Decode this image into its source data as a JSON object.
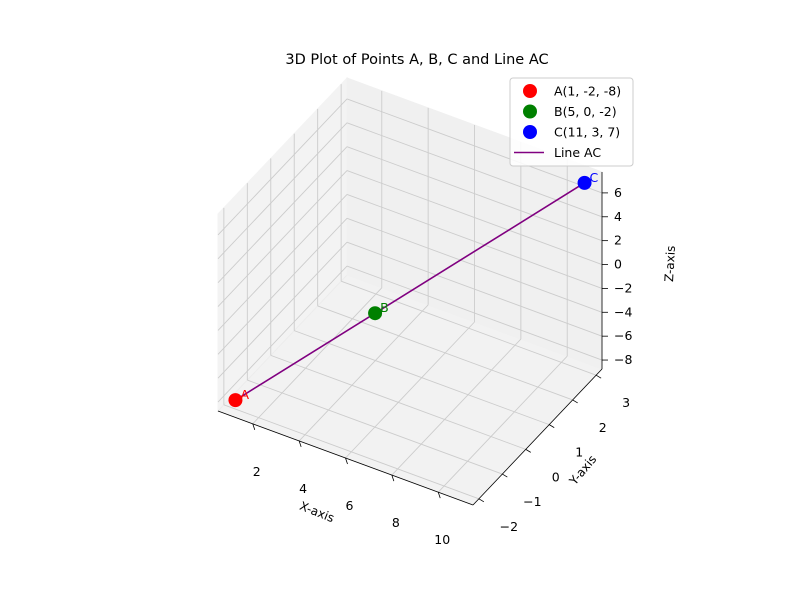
{
  "chart_data": {
    "type": "scatter",
    "title": "3D Plot of Points A, B, C and Line AC",
    "xlabel": "X-axis",
    "ylabel": "Y-axis",
    "zlabel": "Z-axis",
    "xlim": [
      0.5,
      11.5
    ],
    "ylim": [
      -2.25,
      3.25
    ],
    "zlim": [
      -8.75,
      7.75
    ],
    "x_ticks": [
      2,
      4,
      6,
      8,
      10
    ],
    "y_ticks": [
      -2,
      -1,
      0,
      1,
      2,
      3
    ],
    "z_ticks": [
      -8,
      -6,
      -4,
      -2,
      0,
      2,
      4,
      6
    ],
    "x_tick_labels": [
      "2",
      "4",
      "6",
      "8",
      "10"
    ],
    "y_tick_labels": [
      "−2",
      "−1",
      "0",
      "1",
      "2",
      "3"
    ],
    "z_tick_labels": [
      "−8",
      "−6",
      "−4",
      "−2",
      "0",
      "2",
      "4",
      "6"
    ],
    "grid": true,
    "legend_position": "top-right",
    "points": [
      {
        "label": "A",
        "legend": "A(1, -2, -8)",
        "x": 1,
        "y": -2,
        "z": -8,
        "color": "#ff0000"
      },
      {
        "label": "B",
        "legend": "B(5, 0, -2)",
        "x": 5,
        "y": 0,
        "z": -2,
        "color": "#008000"
      },
      {
        "label": "C",
        "legend": "C(11, 3, 7)",
        "x": 11,
        "y": 3,
        "z": 7,
        "color": "#0000ff"
      }
    ],
    "line": {
      "name": "Line AC",
      "from": "A",
      "to": "C",
      "color": "#800080"
    }
  }
}
